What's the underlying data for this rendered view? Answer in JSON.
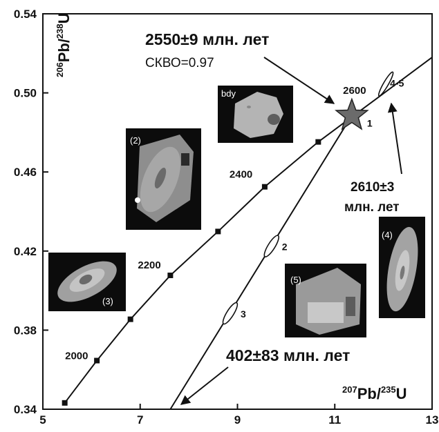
{
  "chart_data": {
    "type": "concordia",
    "xlabel": {
      "sup1": "207",
      "main1": "Pb/",
      "sup2": "235",
      "main2": "U"
    },
    "ylabel": {
      "sup1": "206",
      "main1": "Pb/",
      "sup2": "238",
      "main2": "U"
    },
    "xlim": [
      5,
      13
    ],
    "ylim": [
      0.34,
      0.54
    ],
    "x_ticks": [
      "5",
      "7",
      "9",
      "11",
      "13"
    ],
    "y_ticks": [
      "0.34",
      "0.38",
      "0.42",
      "0.46",
      "0.50",
      "0.54"
    ],
    "concordia_ages": [
      {
        "age": 2000,
        "x": 6.11,
        "y": 0.3646,
        "label": "2000"
      },
      {
        "age": 2100,
        "x": 6.8,
        "y": 0.3855,
        "label": ""
      },
      {
        "age": 2200,
        "x": 7.62,
        "y": 0.4077,
        "label": "2200"
      },
      {
        "age": 2300,
        "x": 8.6,
        "y": 0.4299,
        "label": ""
      },
      {
        "age": 2400,
        "x": 9.56,
        "y": 0.4525,
        "label": "2400"
      },
      {
        "age": 2500,
        "x": 10.66,
        "y": 0.4752,
        "label": ""
      },
      {
        "age": 2600,
        "x": 11.88,
        "y": 0.4975,
        "label": "2600"
      }
    ],
    "concordia_start": {
      "x": 5.45,
      "y": 0.3432
    },
    "discordia": {
      "x1": 7.62,
      "y1": 0.34,
      "x2": 11.35,
      "y2": 0.4885
    },
    "points": [
      {
        "id": "1",
        "x": 11.35,
        "y": 0.4885,
        "label": "1"
      },
      {
        "id": "2",
        "x": 9.7,
        "y": 0.4225,
        "label": "2"
      },
      {
        "id": "3",
        "x": 8.85,
        "y": 0.3885,
        "label": "3"
      },
      {
        "id": "4-5",
        "x": 12.05,
        "y": 0.5045,
        "label": "4-5"
      }
    ],
    "annotations": {
      "upper_age": "2550±9 млн. лет",
      "mswd": "СКВО=0.97",
      "lower_age": "402±83 млн. лет",
      "concordant_age_line1": "2610±3",
      "concordant_age_line2": "млн. лет"
    },
    "photos": [
      {
        "name": "bdy",
        "label": "bdy"
      },
      {
        "name": "2",
        "label": "(2)"
      },
      {
        "name": "3",
        "label": "(3)"
      },
      {
        "name": "4",
        "label": "(4)"
      },
      {
        "name": "5",
        "label": "(5)"
      }
    ]
  }
}
